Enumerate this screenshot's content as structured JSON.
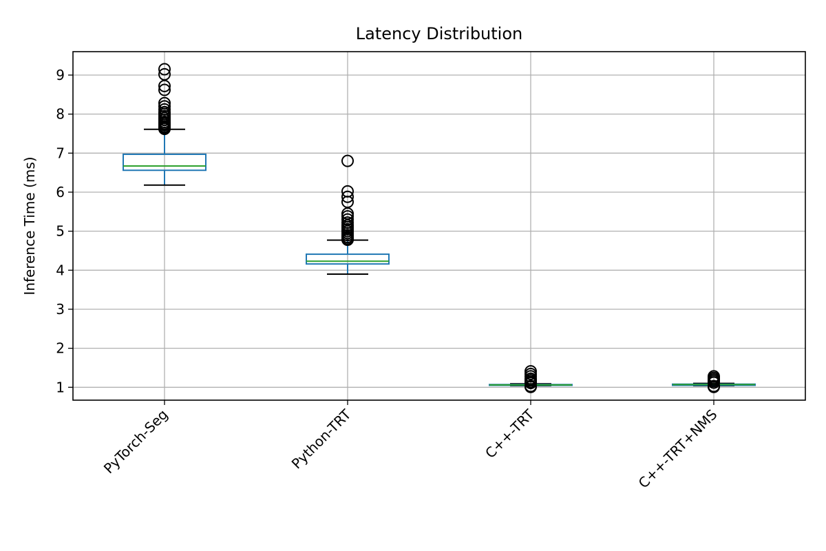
{
  "chart_data": {
    "type": "boxplot",
    "title": "Latency Distribution",
    "xlabel": "",
    "ylabel": "Inference Time (ms)",
    "ylim": [
      0.67,
      9.6
    ],
    "yticks": [
      "1",
      "2",
      "3",
      "4",
      "5",
      "6",
      "7",
      "8",
      "9"
    ],
    "grid": true,
    "categories": [
      "PyTorch-Seg",
      "Python-TRT",
      "C++-TRT",
      "C++-TRT+NMS"
    ],
    "boxes": [
      {
        "label": "PyTorch-Seg",
        "whisker_low": 6.18,
        "q1": 6.56,
        "median": 6.67,
        "q3": 6.97,
        "whisker_high": 7.61,
        "fliers": [
          7.62,
          7.65,
          7.68,
          7.72,
          7.76,
          7.8,
          7.85,
          7.9,
          7.95,
          8.0,
          8.05,
          8.12,
          8.2,
          8.28,
          8.62,
          8.72,
          9.02,
          9.15
        ]
      },
      {
        "label": "Python-TRT",
        "whisker_low": 3.9,
        "q1": 4.16,
        "median": 4.23,
        "q3": 4.41,
        "whisker_high": 4.77,
        "fliers": [
          4.78,
          4.81,
          4.85,
          4.9,
          4.95,
          5.0,
          5.05,
          5.1,
          5.15,
          5.22,
          5.3,
          5.38,
          5.45,
          5.75,
          5.88,
          6.02,
          6.8
        ]
      },
      {
        "label": "C++-TRT",
        "whisker_low": 1.04,
        "q1": 1.05,
        "median": 1.06,
        "q3": 1.07,
        "whisker_high": 1.09,
        "fliers": [
          1.01,
          1.03,
          1.11,
          1.14,
          1.18,
          1.22,
          1.28,
          1.34,
          1.41
        ]
      },
      {
        "label": "C++-TRT+NMS",
        "whisker_low": 1.04,
        "q1": 1.05,
        "median": 1.07,
        "q3": 1.08,
        "whisker_high": 1.1,
        "fliers": [
          1.01,
          1.03,
          1.12,
          1.16,
          1.2,
          1.24,
          1.28
        ]
      }
    ],
    "colors": {
      "box": "#1f77b4",
      "median": "#2ca02c",
      "whisker": "#1f77b4",
      "cap": "#000000",
      "flier": "#000000",
      "grid": "#b0b0b0"
    }
  }
}
